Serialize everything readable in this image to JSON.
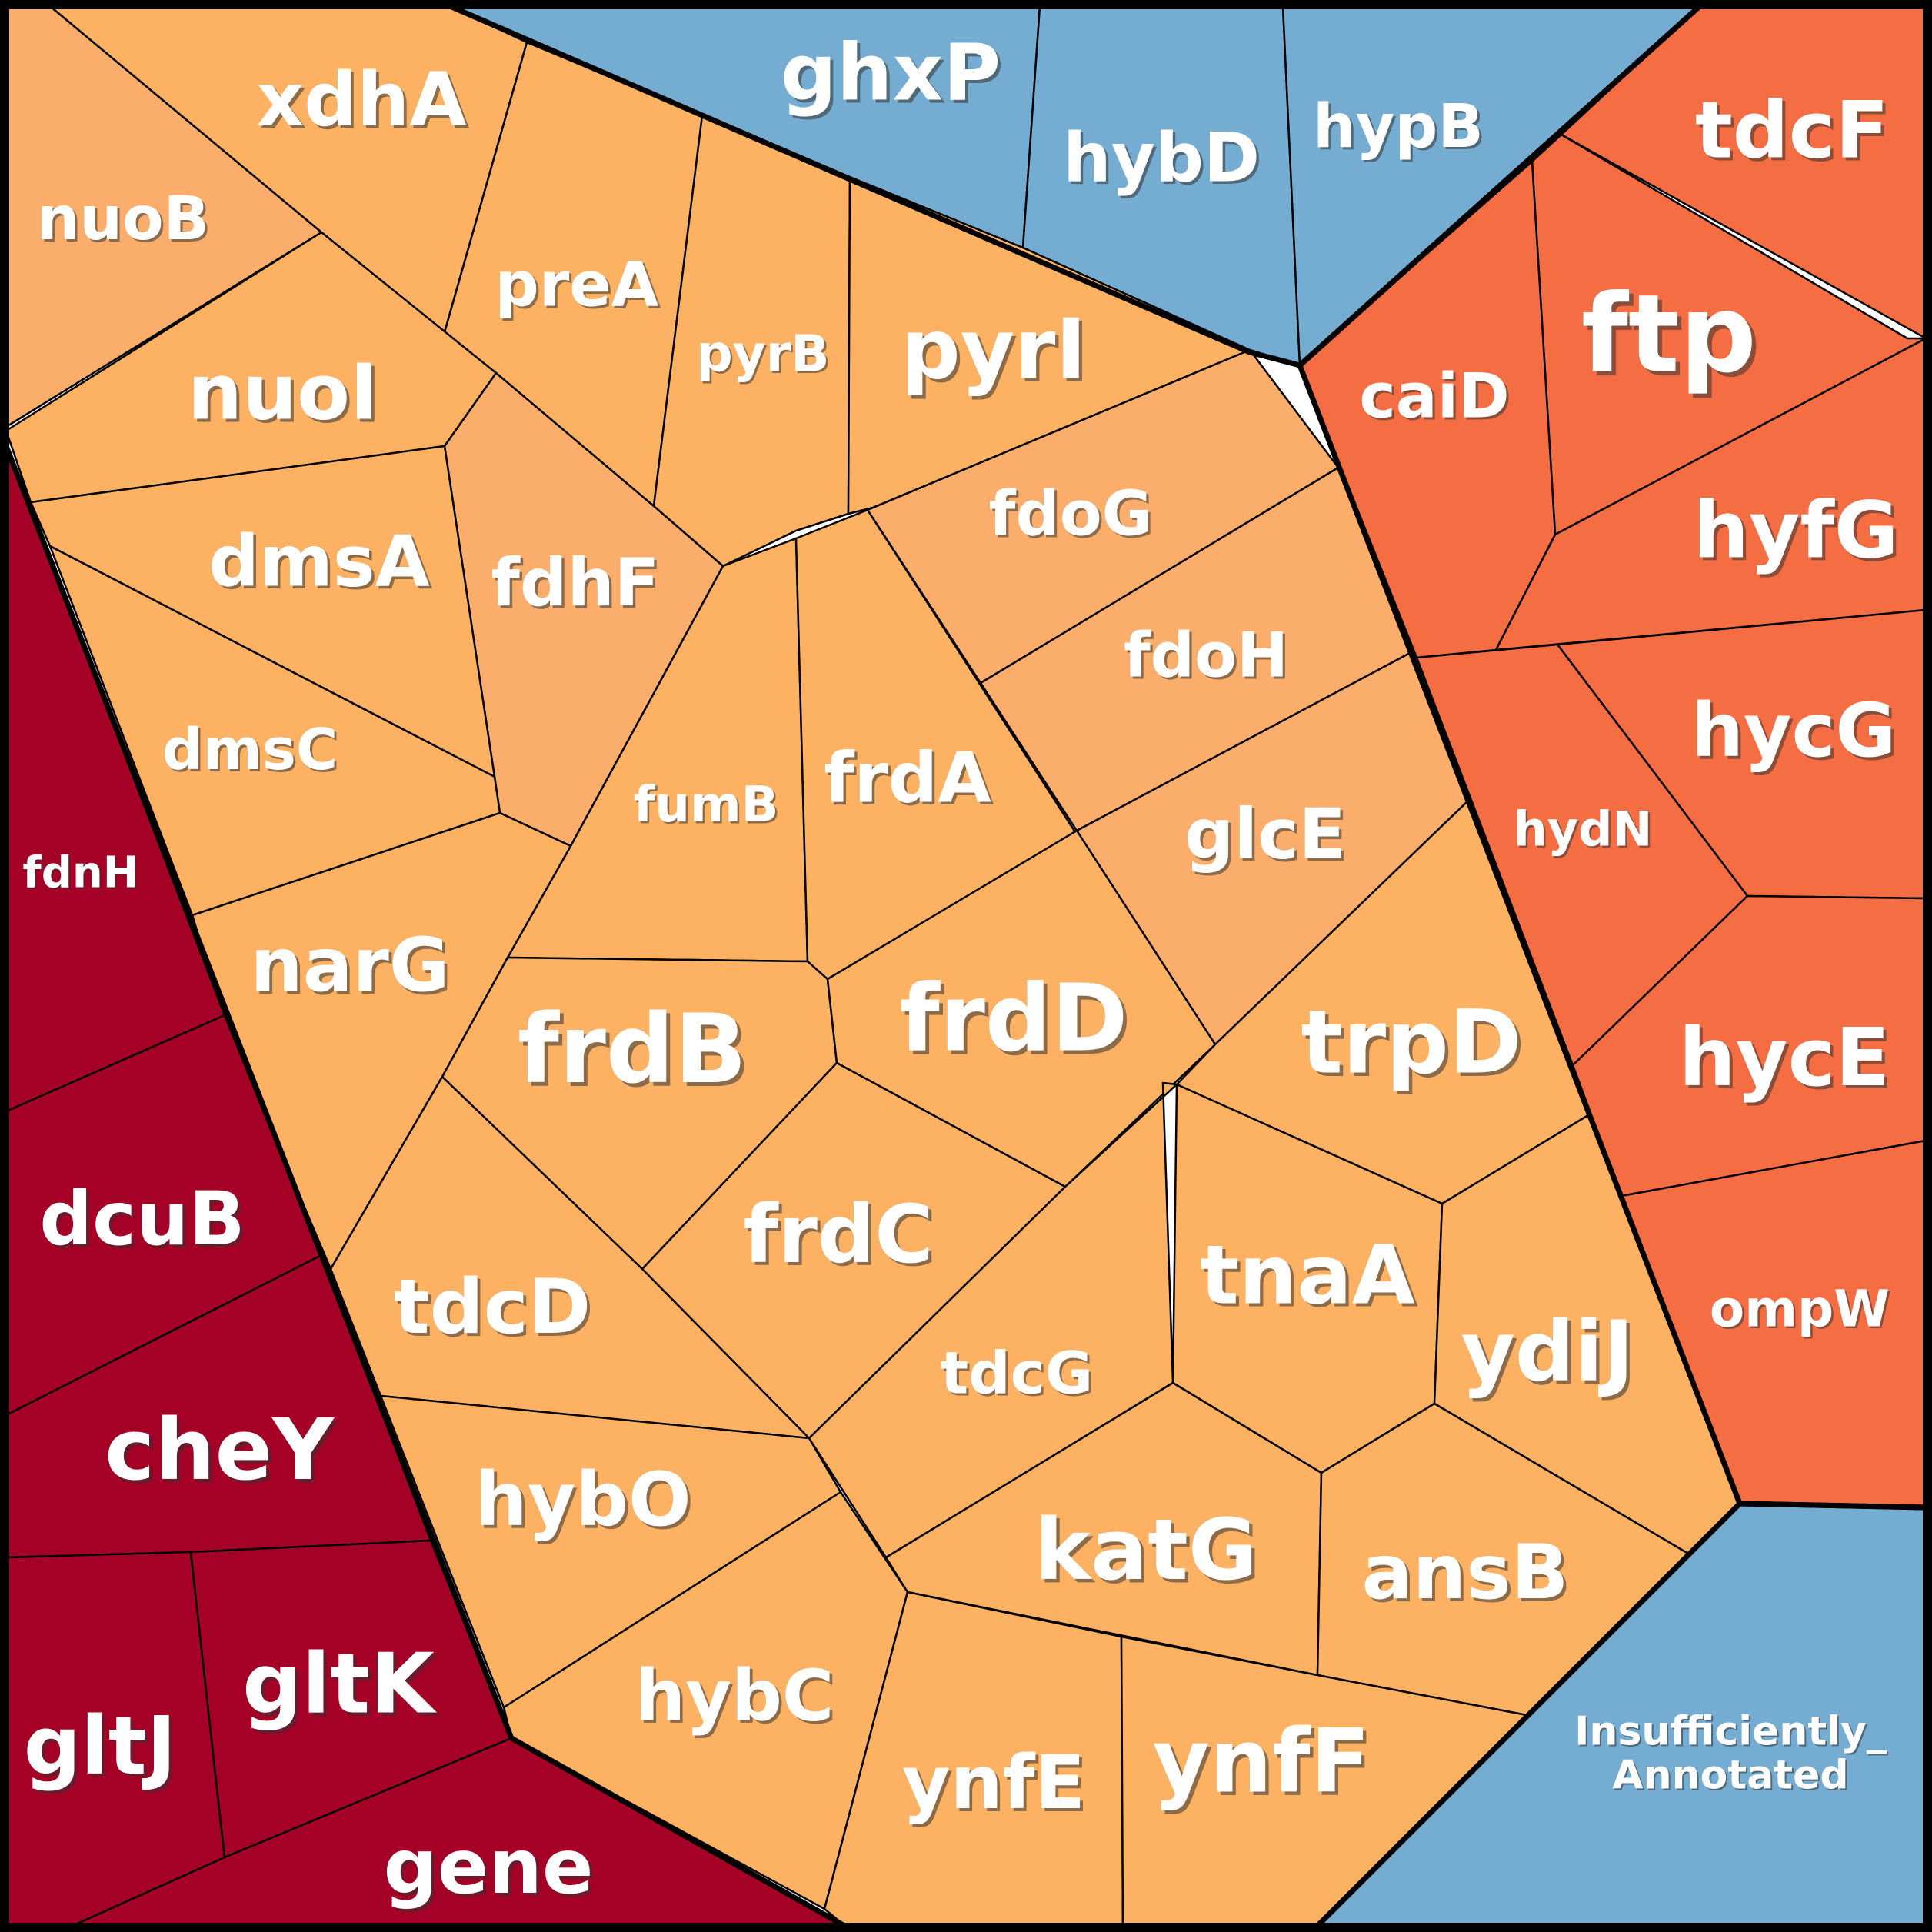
{
  "colors": {
    "orange": "#FDB163",
    "orange_light": "#FBAE6B",
    "red_dark": "#A50026",
    "red_orange": "#F46D43",
    "blue": "#74ADD1"
  },
  "cells": [
    {
      "id": "nuoB",
      "label": "nuoB",
      "color": "orange_light"
    },
    {
      "id": "xdhA",
      "label": "xdhA",
      "color": "orange"
    },
    {
      "id": "preA",
      "label": "preA",
      "color": "orange"
    },
    {
      "id": "pyrB",
      "label": "pyrB",
      "color": "orange"
    },
    {
      "id": "pyrI",
      "label": "pyrI",
      "color": "orange"
    },
    {
      "id": "nuoI",
      "label": "nuoI",
      "color": "orange"
    },
    {
      "id": "fdhF",
      "label": "fdhF",
      "color": "orange_light"
    },
    {
      "id": "dmsA",
      "label": "dmsA",
      "color": "orange"
    },
    {
      "id": "dmsC",
      "label": "dmsC",
      "color": "orange"
    },
    {
      "id": "fumB",
      "label": "fumB",
      "color": "orange"
    },
    {
      "id": "frdA",
      "label": "frdA",
      "color": "orange"
    },
    {
      "id": "fdoG",
      "label": "fdoG",
      "color": "orange_light"
    },
    {
      "id": "fdoH",
      "label": "fdoH",
      "color": "orange_light"
    },
    {
      "id": "glcE",
      "label": "glcE",
      "color": "orange_light"
    },
    {
      "id": "narG",
      "label": "narG",
      "color": "orange"
    },
    {
      "id": "frdB",
      "label": "frdB",
      "color": "orange"
    },
    {
      "id": "frdD",
      "label": "frdD",
      "color": "orange"
    },
    {
      "id": "trpD",
      "label": "trpD",
      "color": "orange"
    },
    {
      "id": "frdC",
      "label": "frdC",
      "color": "orange"
    },
    {
      "id": "tdcD",
      "label": "tdcD",
      "color": "orange"
    },
    {
      "id": "tnaA",
      "label": "tnaA",
      "color": "orange"
    },
    {
      "id": "ydiJ",
      "label": "ydiJ",
      "color": "orange"
    },
    {
      "id": "tdcG",
      "label": "tdcG",
      "color": "orange"
    },
    {
      "id": "hybO",
      "label": "hybO",
      "color": "orange"
    },
    {
      "id": "katG",
      "label": "katG",
      "color": "orange"
    },
    {
      "id": "ansB",
      "label": "ansB",
      "color": "orange"
    },
    {
      "id": "hybC",
      "label": "hybC",
      "color": "orange"
    },
    {
      "id": "ynfE",
      "label": "ynfE",
      "color": "orange"
    },
    {
      "id": "ynfF",
      "label": "ynfF",
      "color": "orange"
    },
    {
      "id": "fdnH",
      "label": "fdnH",
      "color": "red_dark"
    },
    {
      "id": "dcuB",
      "label": "dcuB",
      "color": "red_dark"
    },
    {
      "id": "cheY",
      "label": "cheY",
      "color": "red_dark"
    },
    {
      "id": "gltJ",
      "label": "gltJ",
      "color": "red_dark"
    },
    {
      "id": "gltK",
      "label": "gltK",
      "color": "red_dark"
    },
    {
      "id": "gene",
      "label": "gene",
      "color": "red_dark"
    },
    {
      "id": "ghxP",
      "label": "ghxP",
      "color": "blue"
    },
    {
      "id": "hybD",
      "label": "hybD",
      "color": "blue"
    },
    {
      "id": "hypB",
      "label": "hypB",
      "color": "blue"
    },
    {
      "id": "tdcF",
      "label": "tdcF",
      "color": "red_orange"
    },
    {
      "id": "ftp",
      "label": "ftp",
      "color": "red_orange"
    },
    {
      "id": "caiD",
      "label": "caiD",
      "color": "red_orange"
    },
    {
      "id": "hyfG",
      "label": "hyfG",
      "color": "red_orange"
    },
    {
      "id": "hycG",
      "label": "hycG",
      "color": "red_orange"
    },
    {
      "id": "hydN",
      "label": "hydN",
      "color": "red_orange"
    },
    {
      "id": "hycE",
      "label": "hycE",
      "color": "red_orange"
    },
    {
      "id": "ompW",
      "label": "ompW",
      "color": "red_orange"
    },
    {
      "id": "insuff",
      "label": "Insufficiently_",
      "label2": "Annotated",
      "color": "blue"
    }
  ]
}
